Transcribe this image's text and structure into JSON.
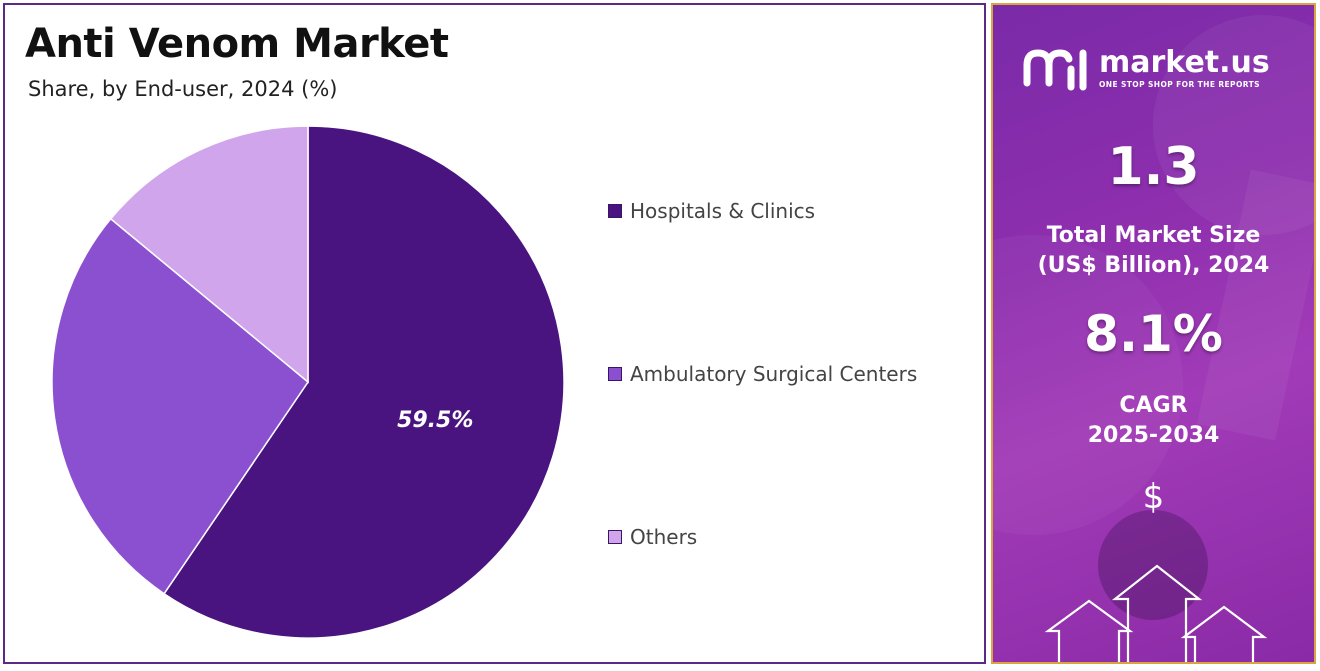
{
  "header": {
    "title": "Anti Venom Market",
    "subtitle": "Share, by End-user, 2024 (%)"
  },
  "chart_data": {
    "type": "pie",
    "title": "Anti Venom Market",
    "subtitle": "Share, by End-user, 2024 (%)",
    "categories": [
      "Hospitals & Clinics",
      "Ambulatory Surgical Centers",
      "Others"
    ],
    "values": [
      59.5,
      26.5,
      14.0
    ],
    "data_labels": [
      "59.5%",
      "",
      ""
    ],
    "colors": [
      "#4a1480",
      "#8a50d0",
      "#d0a5ec"
    ],
    "legend_position": "right"
  },
  "legend": {
    "items": [
      {
        "label": "Hospitals & Clinics",
        "color": "#4a1480"
      },
      {
        "label": "Ambulatory Surgical Centers",
        "color": "#8a50d0"
      },
      {
        "label": "Others",
        "color": "#d0a5ec"
      }
    ]
  },
  "sidebar": {
    "brand": "market.us",
    "tagline": "ONE STOP SHOP FOR THE REPORTS",
    "market_size": "1.3",
    "market_size_label_line1": "Total Market Size",
    "market_size_label_line2": "(US$ Billion), 2024",
    "cagr": "8.1%",
    "cagr_label_line1": "CAGR",
    "cagr_label_line2": "2025-2034",
    "currency_symbol": "$",
    "icons": [
      "market-us-logo-icon",
      "growth-arrows-icon"
    ]
  }
}
